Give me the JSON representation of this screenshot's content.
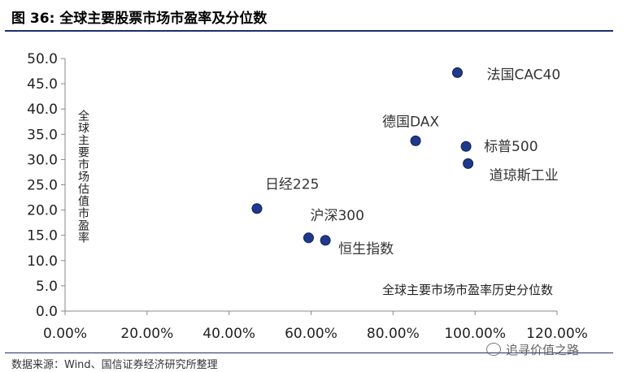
{
  "figure": {
    "title": "图 36:  全球主要股票市场市盈率及分位数",
    "source": "数据来源：Wind、国信证券经济研究所整理",
    "watermark": "追寻价值之路"
  },
  "chart_data": {
    "type": "scatter",
    "title": "",
    "xlabel": "全球主要市场市盈率历史分位数",
    "ylabel": "全球主要市场估值市盈率",
    "xlim": [
      0,
      1.2
    ],
    "ylim": [
      0,
      50
    ],
    "x_ticks": [
      "0.00%",
      "20.00%",
      "40.00%",
      "60.00%",
      "80.00%",
      "100.00%",
      "120.00%"
    ],
    "y_ticks": [
      "0.0",
      "5.0",
      "10.0",
      "15.0",
      "20.0",
      "25.0",
      "30.0",
      "35.0",
      "40.0",
      "45.0",
      "50.0"
    ],
    "marker_color": "#1f3a8a",
    "grid": false,
    "points": [
      {
        "label": "法国CAC40",
        "x": 0.957,
        "y": 47.2
      },
      {
        "label": "德国DAX",
        "x": 0.855,
        "y": 33.7
      },
      {
        "label": "标普500",
        "x": 0.978,
        "y": 32.6
      },
      {
        "label": "道琼斯工业",
        "x": 0.983,
        "y": 29.2
      },
      {
        "label": "日经225",
        "x": 0.468,
        "y": 20.3
      },
      {
        "label": "沪深300",
        "x": 0.594,
        "y": 14.5
      },
      {
        "label": "恒生指数",
        "x": 0.635,
        "y": 14.0
      }
    ]
  }
}
